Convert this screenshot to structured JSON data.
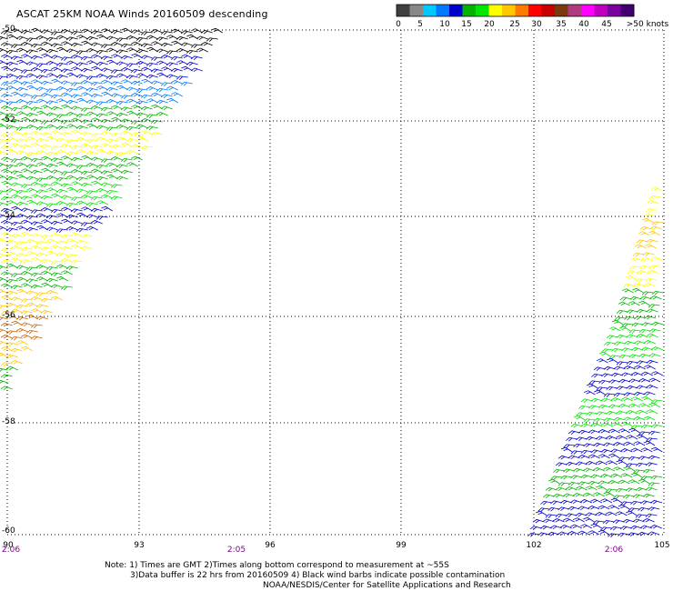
{
  "title": "ASCAT 25KM NOAA Winds 20160509 descending",
  "legend": {
    "colors": [
      "#404040",
      "#888888",
      "#00c8ff",
      "#0078ff",
      "#0000cc",
      "#00b400",
      "#00e600",
      "#ffff00",
      "#ffc800",
      "#ff7a00",
      "#ff0000",
      "#c80000",
      "#7a3a10",
      "#b03a80",
      "#ff00ff",
      "#c000c0",
      "#7a00a0",
      "#400070"
    ],
    "labels": [
      "0",
      "5",
      "10",
      "15",
      "20",
      "25",
      "30",
      "35",
      "40",
      "45",
      ">50 knots"
    ]
  },
  "axes": {
    "lat_labels": [
      "-50",
      "-52",
      "-54",
      "-56",
      "-58",
      "-60"
    ],
    "lon_labels": [
      "90",
      "93",
      "96",
      "99",
      "102",
      "105"
    ]
  },
  "time_labels": [
    "2:06",
    "2:05",
    "2:06"
  ],
  "notes": [
    "Note: 1) Times are GMT 2)Times along bottom correspond to measurement at ~55S",
    "3)Data buffer is 22 hrs from 20160509 4) Black wind barbs indicate possible contamination"
  ],
  "credit": "NOAA/NESDIS/Center for Satellite Applications and Research",
  "swaths": [
    {
      "name": "west-swath",
      "band_colors": [
        "#000000",
        "#0000cc",
        "#0078ff",
        "#00b400",
        "#ffff00",
        "#00b400",
        "#00e600",
        "#0000cc",
        "#ffff00",
        "#00b400",
        "#ffc800",
        "#c86400",
        "#ffc800",
        "#00b400"
      ]
    },
    {
      "name": "east-swath",
      "band_colors": [
        "#ffff00",
        "#ffc800",
        "#ffff00",
        "#00b400",
        "#00e600",
        "#0000cc",
        "#00e600",
        "#0000cc",
        "#00b400",
        "#0000cc"
      ]
    }
  ]
}
